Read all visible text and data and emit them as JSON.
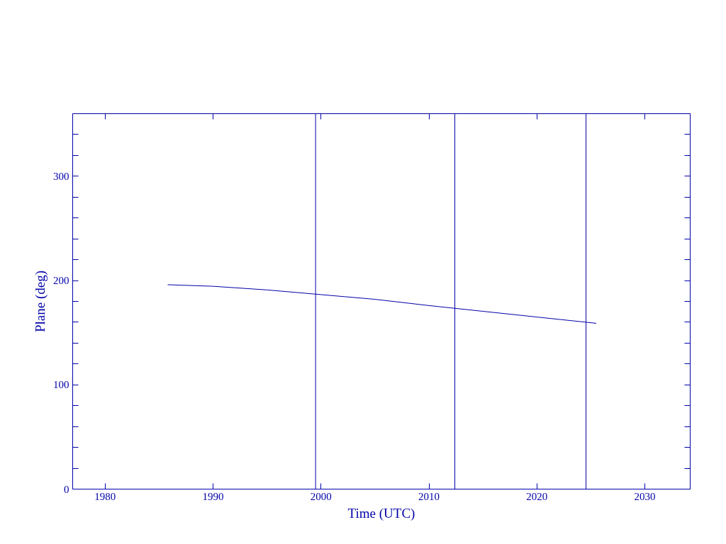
{
  "chart_data": {
    "type": "line",
    "xlabel": "Time (UTC)",
    "ylabel": "Plane (deg)",
    "xlim": [
      1977,
      2034.2
    ],
    "ylim": [
      0,
      360
    ],
    "xticks": [
      1980,
      1990,
      2000,
      2010,
      2020,
      2030
    ],
    "yticks": [
      0,
      {
        "value": 20,
        "label": null
      },
      {
        "value": 40,
        "label": null
      },
      {
        "value": 60,
        "label": null
      },
      {
        "value": 80,
        "label": null
      },
      100,
      {
        "value": 120,
        "label": null
      },
      {
        "value": 140,
        "label": null
      },
      {
        "value": 160,
        "label": null
      },
      {
        "value": 180,
        "label": null
      },
      200,
      {
        "value": 220,
        "label": null
      },
      {
        "value": 240,
        "label": null
      },
      {
        "value": 260,
        "label": null
      },
      {
        "value": 280,
        "label": null
      },
      300,
      {
        "value": 320,
        "label": null
      },
      {
        "value": 340,
        "label": null
      }
    ],
    "grid": false,
    "marker": "none",
    "line_style": "solid",
    "series": [
      {
        "color": "#0000a8",
        "x": [
          1985.8,
          1990,
          1995,
          2000,
          2005,
          2010,
          2015,
          2020,
          2025.5
        ],
        "values": [
          196,
          194.5,
          191,
          186.5,
          182,
          176,
          170.5,
          165,
          159
        ]
      }
    ],
    "ref_lines": [
      {
        "axis": "x",
        "value": 1999.5,
        "color": "#0000a8"
      },
      {
        "axis": "x",
        "value": 2012.4,
        "color": "#0000a8"
      },
      {
        "axis": "x",
        "value": 2024.55,
        "color": "#0000a8"
      }
    ]
  }
}
